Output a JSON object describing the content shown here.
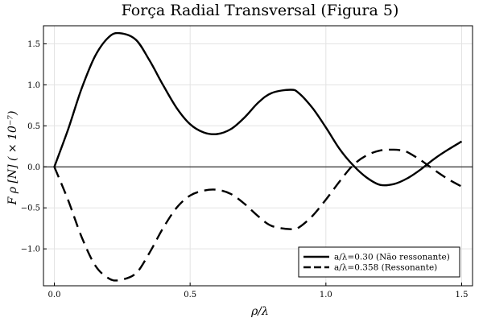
{
  "chart_data": {
    "type": "line",
    "title": "Força Radial Transversal (Figura 5)",
    "xlabel": "ρ/λ",
    "ylabel": "F ρ [N]  ( × 10⁻⁷)",
    "xlim": [
      -0.04,
      1.54
    ],
    "ylim": [
      -1.45,
      1.72
    ],
    "xticks": [
      0.0,
      0.5,
      1.0,
      1.5
    ],
    "xtick_labels": [
      "0.0",
      "0.5",
      "1.0",
      "1.5"
    ],
    "yticks": [
      -1.0,
      -0.5,
      0.0,
      0.5,
      1.0,
      1.5
    ],
    "ytick_labels": [
      "−1.0",
      "−0.5",
      "0.0",
      "0.5",
      "1.0",
      "1.5"
    ],
    "grid": true,
    "legend_position": "bottom-right",
    "zero_line": true,
    "series": [
      {
        "name": "a/λ=0.30 (Não ressonante)",
        "style": "solid",
        "x": [
          0.0,
          0.05,
          0.1,
          0.15,
          0.2,
          0.24,
          0.3,
          0.35,
          0.4,
          0.45,
          0.5,
          0.55,
          0.6,
          0.65,
          0.7,
          0.75,
          0.8,
          0.87,
          0.9,
          0.95,
          1.0,
          1.05,
          1.1,
          1.15,
          1.2,
          1.25,
          1.3,
          1.35,
          1.4,
          1.45,
          1.5
        ],
        "y": [
          0.0,
          0.45,
          0.95,
          1.35,
          1.58,
          1.63,
          1.55,
          1.3,
          1.0,
          0.72,
          0.52,
          0.42,
          0.4,
          0.46,
          0.6,
          0.78,
          0.9,
          0.94,
          0.9,
          0.72,
          0.48,
          0.22,
          0.02,
          -0.13,
          -0.22,
          -0.21,
          -0.14,
          -0.03,
          0.1,
          0.21,
          0.31
        ]
      },
      {
        "name": "a/λ=0.358 (Ressonante)",
        "style": "dashed",
        "x": [
          0.0,
          0.05,
          0.1,
          0.15,
          0.2,
          0.24,
          0.3,
          0.35,
          0.4,
          0.45,
          0.5,
          0.55,
          0.6,
          0.65,
          0.7,
          0.75,
          0.8,
          0.87,
          0.9,
          0.95,
          1.0,
          1.05,
          1.1,
          1.15,
          1.2,
          1.25,
          1.28,
          1.3,
          1.35,
          1.4,
          1.45,
          1.5
        ],
        "y": [
          0.0,
          -0.4,
          -0.85,
          -1.2,
          -1.36,
          -1.38,
          -1.3,
          -1.05,
          -0.75,
          -0.5,
          -0.35,
          -0.29,
          -0.28,
          -0.33,
          -0.45,
          -0.6,
          -0.72,
          -0.76,
          -0.74,
          -0.6,
          -0.4,
          -0.18,
          0.02,
          0.14,
          0.2,
          0.21,
          0.2,
          0.18,
          0.08,
          -0.04,
          -0.15,
          -0.24
        ]
      }
    ]
  }
}
